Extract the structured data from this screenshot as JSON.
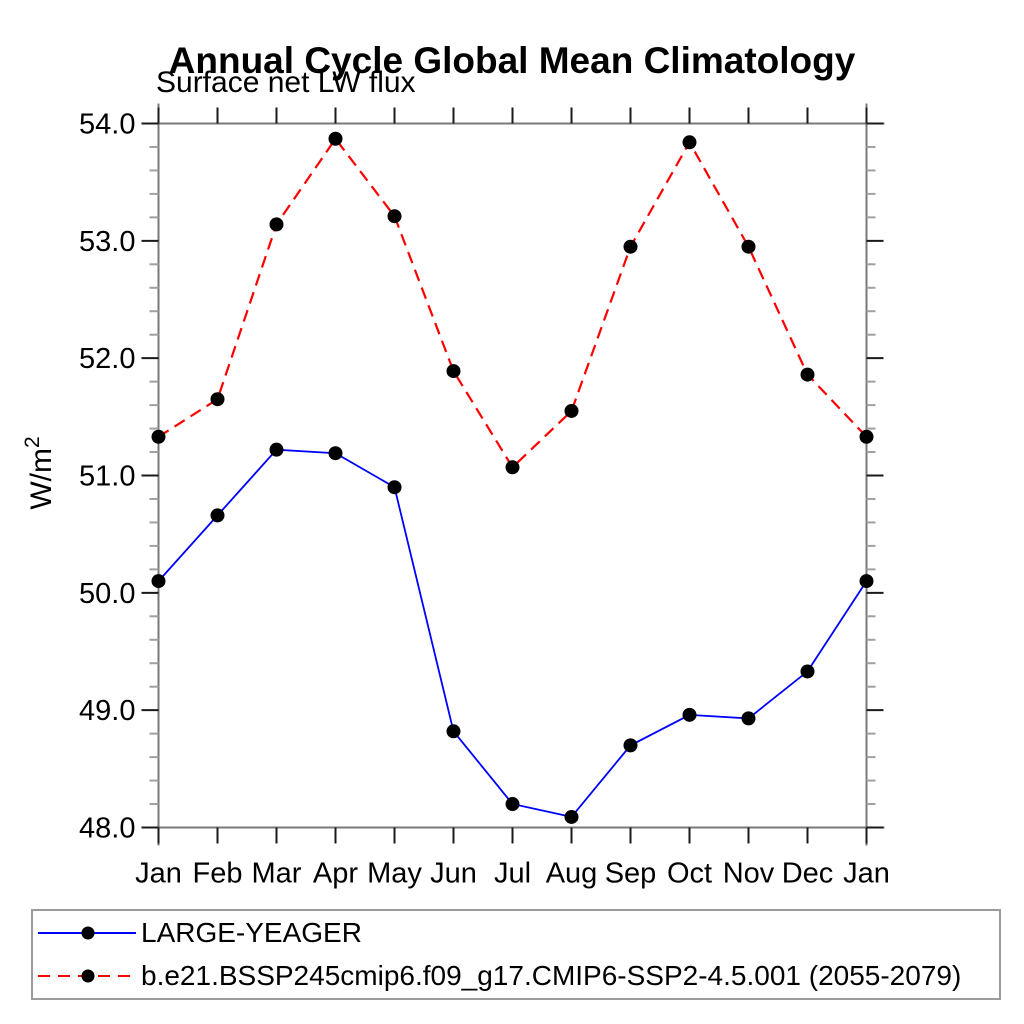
{
  "header": {
    "title": "Annual Cycle Global Mean Climatology",
    "subtitle": "Surface net LW flux"
  },
  "chart_data": {
    "type": "line",
    "x_categories": [
      "Jan",
      "Feb",
      "Mar",
      "Apr",
      "May",
      "Jun",
      "Jul",
      "Aug",
      "Sep",
      "Oct",
      "Nov",
      "Dec",
      "Jan"
    ],
    "series": [
      {
        "name": "LARGE-YEAGER",
        "line_color": "#0000ff",
        "line_style": "solid",
        "marker": "filled-circle",
        "marker_color": "#000000",
        "values": [
          50.1,
          50.66,
          51.22,
          51.19,
          50.9,
          48.82,
          48.2,
          48.09,
          48.7,
          48.96,
          48.93,
          49.33,
          50.1
        ]
      },
      {
        "name": "b.e21.BSSP245cmip6.f09_g17.CMIP6-SSP2-4.5.001 (2055-2079)",
        "line_color": "#ff0000",
        "line_style": "dashed",
        "marker": "filled-circle",
        "marker_color": "#000000",
        "values": [
          51.33,
          51.65,
          53.14,
          53.87,
          53.21,
          51.89,
          51.07,
          51.55,
          52.95,
          53.84,
          52.95,
          51.86,
          51.33
        ]
      }
    ],
    "title": "Annual Cycle Global Mean Climatology",
    "subtitle": "Surface net LW flux",
    "xlabel": "",
    "ylabel": "W/m²",
    "ylim": [
      48.0,
      54.0
    ],
    "y_tick_labels": [
      "48.0",
      "49.0",
      "50.0",
      "51.0",
      "52.0",
      "53.0",
      "54.0"
    ],
    "y_tick_values": [
      48.0,
      49.0,
      50.0,
      51.0,
      52.0,
      53.0,
      54.0
    ],
    "y_minor_step": 0.2,
    "grid": false,
    "legend_position": "bottom",
    "axis_color": "#787878",
    "major_tick_color": "#1a1a1a",
    "minor_tick_color": "#a0a0a0"
  },
  "legend": {
    "items": [
      {
        "label": "LARGE-YEAGER"
      },
      {
        "label": "b.e21.BSSP245cmip6.f09_g17.CMIP6-SSP2-4.5.001 (2055-2079)"
      }
    ]
  }
}
